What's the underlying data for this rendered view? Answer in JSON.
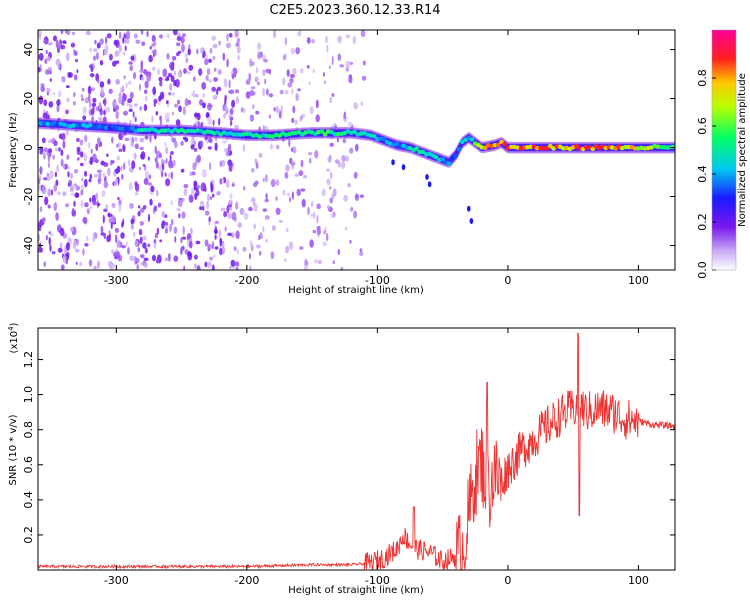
{
  "title": "C2E5.2023.360.12.33.R14",
  "chart_data": [
    {
      "type": "heatmap",
      "xlabel": "Height of straight line (km)",
      "ylabel": "Frequency (Hz)",
      "xlim": [
        -360,
        128
      ],
      "ylim": [
        -50,
        48
      ],
      "xticks": [
        -300,
        -200,
        -100,
        0,
        100
      ],
      "yticks": [
        -40,
        -20,
        0,
        20,
        40
      ],
      "colorbar": {
        "label": "Normalized spectral amplitude",
        "range": [
          0.0,
          1.0
        ],
        "ticks": [
          0.0,
          0.2,
          0.4,
          0.6,
          0.8
        ],
        "colormap": "rainbow (purple-blue-cyan-green-yellow-red-magenta)"
      },
      "ridge_line": {
        "x": [
          -360,
          -330,
          -300,
          -280,
          -250,
          -220,
          -200,
          -180,
          -150,
          -120,
          -105,
          -95,
          -85,
          -75,
          -65,
          -55,
          -45,
          -40,
          -35,
          -30,
          -20,
          -10,
          -5,
          0,
          10,
          30,
          60,
          90,
          128
        ],
        "y": [
          10,
          9,
          8,
          7,
          7,
          6,
          5,
          5,
          6,
          6,
          5,
          3,
          1,
          0,
          -2,
          -4,
          -6,
          -3,
          2,
          4,
          0,
          1,
          2,
          0,
          0,
          0,
          0,
          0,
          0
        ],
        "peak_amplitude": [
          0.4,
          0.45,
          0.35,
          0.5,
          0.55,
          0.5,
          0.5,
          0.55,
          0.6,
          0.55,
          0.5,
          0.45,
          0.4,
          0.5,
          0.55,
          0.45,
          0.4,
          0.35,
          0.45,
          0.5,
          0.75,
          0.85,
          0.9,
          0.85,
          0.9,
          0.9,
          0.88,
          0.85,
          0.6
        ]
      }
    },
    {
      "type": "line",
      "xlabel": "Height of straight line (km)",
      "ylabel": "SNR (10 * v/v)",
      "scale_note": "(x10",
      "scale_exp": "4",
      "xlim": [
        -360,
        128
      ],
      "ylim": [
        0,
        1.38
      ],
      "xticks": [
        -300,
        -200,
        -100,
        0,
        100
      ],
      "yticks": [
        0.2,
        0.4,
        0.6,
        0.8,
        1.0,
        1.2
      ],
      "series": [
        {
          "color": "#ee3333",
          "x": [
            -360,
            -300,
            -250,
            -200,
            -150,
            -120,
            -105,
            -95,
            -85,
            -80,
            -75,
            -70,
            -60,
            -50,
            -40,
            -35,
            -30,
            -25,
            -20,
            -15,
            -10,
            -5,
            0,
            10,
            20,
            30,
            40,
            50,
            55,
            60,
            70,
            80,
            90,
            100,
            110,
            128
          ],
          "y": [
            0.02,
            0.02,
            0.02,
            0.02,
            0.03,
            0.03,
            0.04,
            0.07,
            0.12,
            0.2,
            0.15,
            0.12,
            0.1,
            0.05,
            0.08,
            0.1,
            0.3,
            0.55,
            0.62,
            0.45,
            0.55,
            0.5,
            0.58,
            0.68,
            0.75,
            0.82,
            0.88,
            0.92,
            0.95,
            0.9,
            0.92,
            0.9,
            0.86,
            0.85,
            0.83,
            0.82
          ]
        }
      ],
      "annotations": [
        {
          "x": 54,
          "y": 1.35,
          "note": "max spike"
        },
        {
          "x": 54,
          "y": 0.31,
          "note": "min dip"
        },
        {
          "x": -16,
          "y": 1.07,
          "note": "spike"
        },
        {
          "x": -72,
          "y": 0.36,
          "note": "spike"
        }
      ]
    }
  ]
}
